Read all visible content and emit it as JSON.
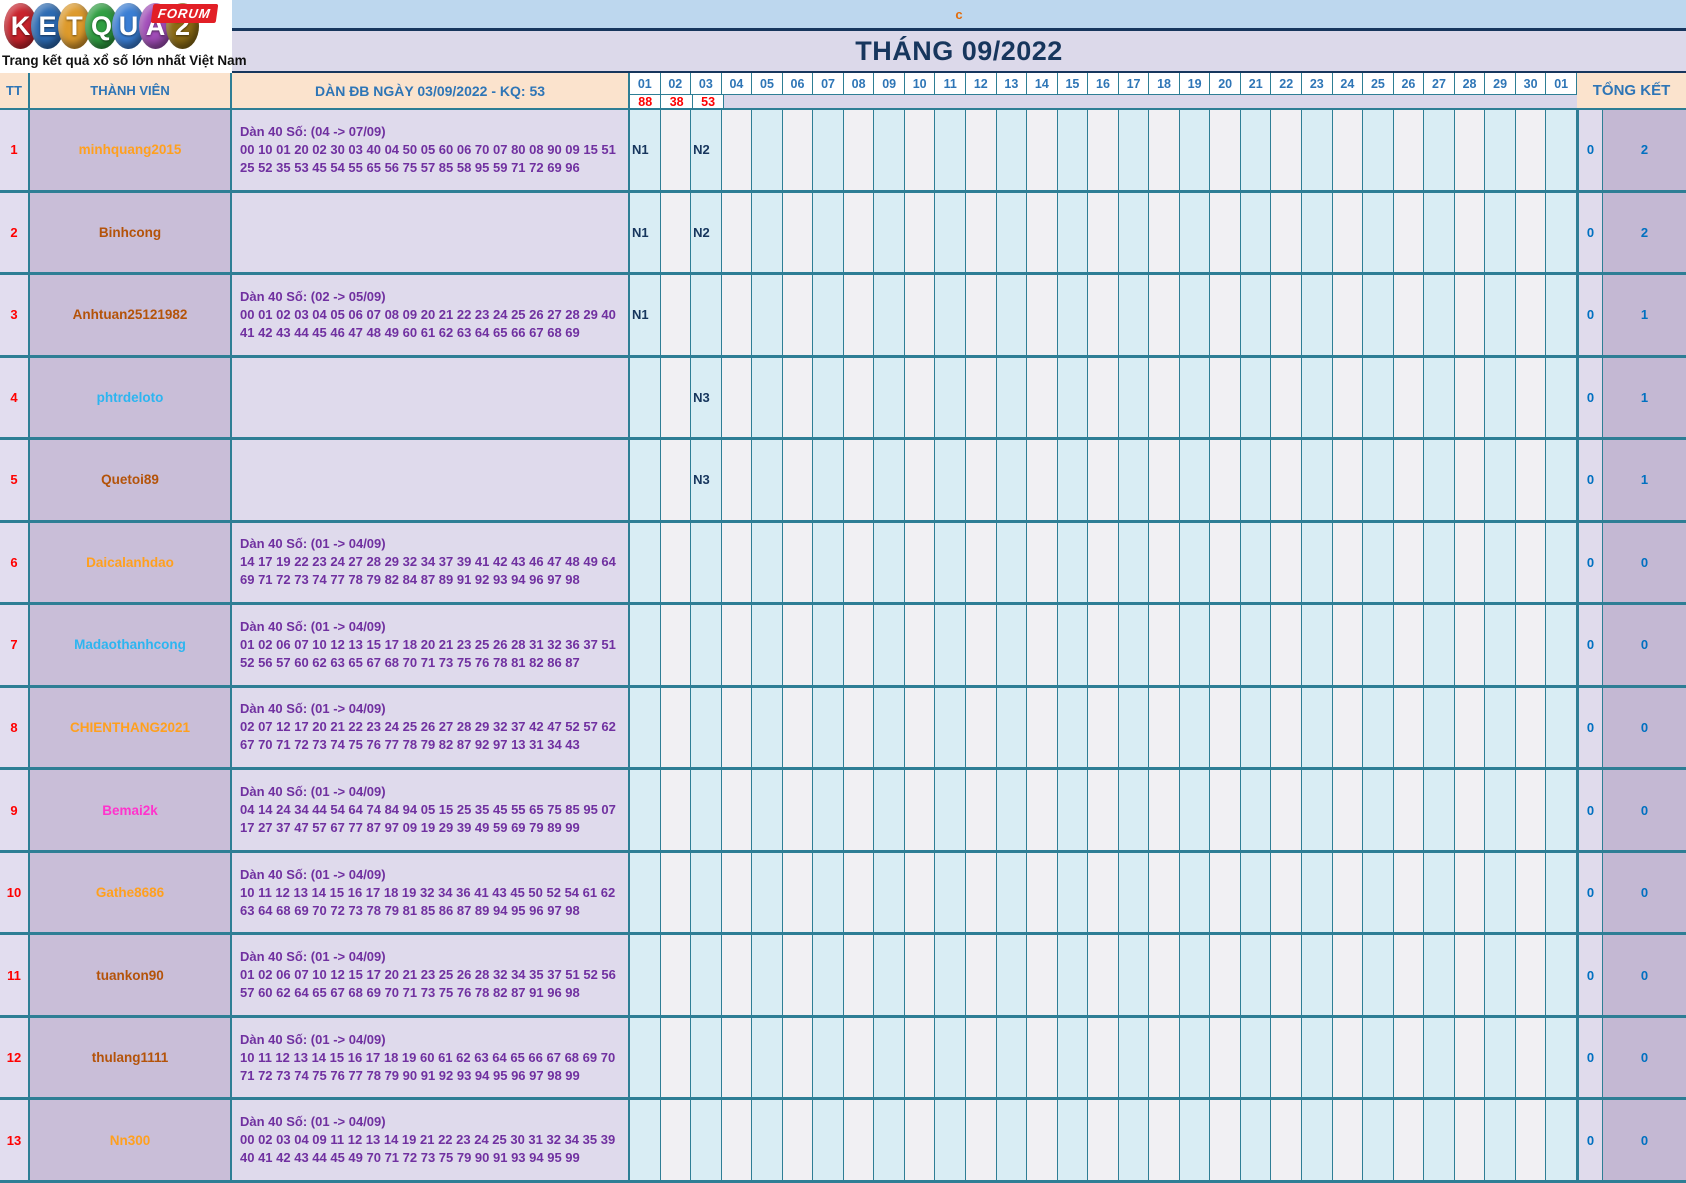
{
  "brand": {
    "letters": [
      {
        "char": "K",
        "color": "#c8232c"
      },
      {
        "char": "E",
        "color": "#2c6bb3"
      },
      {
        "char": "T",
        "color": "#dd9a2b"
      },
      {
        "char": "Q",
        "color": "#2f9e41"
      },
      {
        "char": "U",
        "color": "#3a7ed4"
      },
      {
        "char": "A",
        "color": "#a14db8"
      },
      {
        "char": "2",
        "color": "#8a6a14"
      }
    ],
    "forum_label": "FORUM",
    "tagline": "Trang kết quả xổ số lớn nhất Việt Nam"
  },
  "topbar": {
    "c_label": "c"
  },
  "title": "THÁNG 09/2022",
  "table": {
    "tt_header": "TT",
    "member_header": "THÀNH VIÊN",
    "dan_header": "DÀN ĐB NGÀY 03/09/2022 - KQ: 53",
    "tongket_header": "TỔNG KẾT",
    "days": [
      "01",
      "02",
      "03",
      "04",
      "05",
      "06",
      "07",
      "08",
      "09",
      "10",
      "11",
      "12",
      "13",
      "14",
      "15",
      "16",
      "17",
      "18",
      "19",
      "20",
      "21",
      "22",
      "23",
      "24",
      "25",
      "26",
      "27",
      "28",
      "29",
      "30",
      "01"
    ],
    "day_results": [
      "88",
      "38",
      "53"
    ],
    "rows": [
      {
        "tt": "1",
        "name": "minhquang2015",
        "name_color": "#ffa01e",
        "dan_title": "Dàn 40 Số: (04 -> 07/09)",
        "dan_numbers": "00 10 01 20 02 30 03 40 04 50 05 60 06 70 07 80 08 90 09 15 51 25 52 35 53 45 54 55 65 56 75 57 85 58 95 59 71 72 69 96",
        "marks": {
          "0": "N1",
          "2": "N2"
        },
        "totals": [
          "0",
          "2"
        ]
      },
      {
        "tt": "2",
        "name": "Binhcong",
        "name_color": "#b45309",
        "dan_title": "",
        "dan_numbers": "",
        "marks": {
          "0": "N1",
          "2": "N2"
        },
        "totals": [
          "0",
          "2"
        ]
      },
      {
        "tt": "3",
        "name": "Anhtuan25121982",
        "name_color": "#b45309",
        "dan_title": "Dàn 40 Số: (02 -> 05/09)",
        "dan_numbers": "00 01 02 03 04 05 06 07 08 09 20 21 22 23 24 25 26 27 28 29 40 41 42 43 44 45 46 47 48 49 60 61 62 63 64 65 66 67 68 69",
        "marks": {
          "0": "N1"
        },
        "totals": [
          "0",
          "1"
        ]
      },
      {
        "tt": "4",
        "name": "phtrdeloto",
        "name_color": "#2db5f0",
        "dan_title": "",
        "dan_numbers": "",
        "marks": {
          "2": "N3"
        },
        "totals": [
          "0",
          "1"
        ]
      },
      {
        "tt": "5",
        "name": "Quetoi89",
        "name_color": "#b45309",
        "dan_title": "",
        "dan_numbers": "",
        "marks": {
          "2": "N3"
        },
        "totals": [
          "0",
          "1"
        ]
      },
      {
        "tt": "6",
        "name": "Daicalanhdao",
        "name_color": "#ffa01e",
        "dan_title": "Dàn 40 Số: (01 -> 04/09)",
        "dan_numbers": "14 17 19 22 23 24 27 28 29 32 34 37 39 41 42 43 46 47 48 49 64 69 71 72 73 74 77 78 79 82 84 87 89 91 92 93 94 96 97 98",
        "marks": {},
        "totals": [
          "0",
          "0"
        ]
      },
      {
        "tt": "7",
        "name": "Madaothanhcong",
        "name_color": "#2db5f0",
        "dan_title": "Dàn 40 Số: (01 -> 04/09)",
        "dan_numbers": "01 02 06 07 10 12 13 15 17 18 20 21 23 25 26 28 31 32 36 37 51 52 56 57 60 62 63 65 67 68 70 71 73 75 76 78 81 82 86 87",
        "marks": {},
        "totals": [
          "0",
          "0"
        ]
      },
      {
        "tt": "8",
        "name": "CHIENTHANG2021",
        "name_color": "#ffa01e",
        "dan_title": "Dàn 40 Số: (01 -> 04/09)",
        "dan_numbers": "02 07 12 17 20 21 22 23 24 25 26 27 28 29 32 37 42 47 52 57 62 67 70 71 72 73 74 75 76 77 78 79 82 87 92 97 13 31 34 43",
        "marks": {},
        "totals": [
          "0",
          "0"
        ]
      },
      {
        "tt": "9",
        "name": "Bemai2k",
        "name_color": "#ff33cc",
        "dan_title": "Dàn 40 Số: (01 -> 04/09)",
        "dan_numbers": "04 14 24 34 44 54 64 74 84 94 05 15 25 35 45 55 65 75 85 95 07 17 27 37 47 57 67 77 87 97 09 19 29 39 49 59 69 79 89 99",
        "marks": {},
        "totals": [
          "0",
          "0"
        ]
      },
      {
        "tt": "10",
        "name": "Gathe8686",
        "name_color": "#ffa01e",
        "dan_title": "Dàn 40 Số: (01 -> 04/09)",
        "dan_numbers": "10 11 12 13 14 15 16 17 18 19 32 34 36 41 43 45 50 52 54 61 62 63 64 68 69 70 72 73 78 79 81 85 86 87 89 94 95 96 97 98",
        "marks": {},
        "totals": [
          "0",
          "0"
        ]
      },
      {
        "tt": "11",
        "name": "tuankon90",
        "name_color": "#b45309",
        "dan_title": "Dàn 40 Số: (01 -> 04/09)",
        "dan_numbers": "01 02 06 07 10 12 15 17 20 21 23 25 26 28 32 34 35 37 51 52 56 57 60 62 64 65 67 68 69 70 71 73 75 76 78 82 87 91 96 98",
        "marks": {},
        "totals": [
          "0",
          "0"
        ]
      },
      {
        "tt": "12",
        "name": "thulang1111",
        "name_color": "#b45309",
        "dan_title": "Dàn 40 Số: (01 -> 04/09)",
        "dan_numbers": "10 11 12 13 14 15 16 17 18 19 60 61 62 63 64 65 66 67 68 69 70 71 72 73 74 75 76 77 78 79 90 91 92 93 94 95 96 97 98 99",
        "marks": {},
        "totals": [
          "0",
          "0"
        ]
      },
      {
        "tt": "13",
        "name": "Nn300",
        "name_color": "#ffa01e",
        "dan_title": "Dàn 40 Số: (01 -> 04/09)",
        "dan_numbers": "00 02 03 04 09 11 12 13 14 19 21 22 23 24 25 30 31 32 34 35 39 40 41 42 43 44 45 49 70 71 72 73 75 79 90 91 93 94 95 99",
        "marks": {},
        "totals": [
          "0",
          "0"
        ]
      }
    ]
  },
  "colors": {
    "border_teal": "#2e7e95",
    "navy": "#17365d",
    "header_peach": "#fbe3cd",
    "day_cyan": "#d9edf4",
    "day_gray": "#f1f0f3",
    "result_red": "#ff0000",
    "total_blue": "#0070c0"
  }
}
